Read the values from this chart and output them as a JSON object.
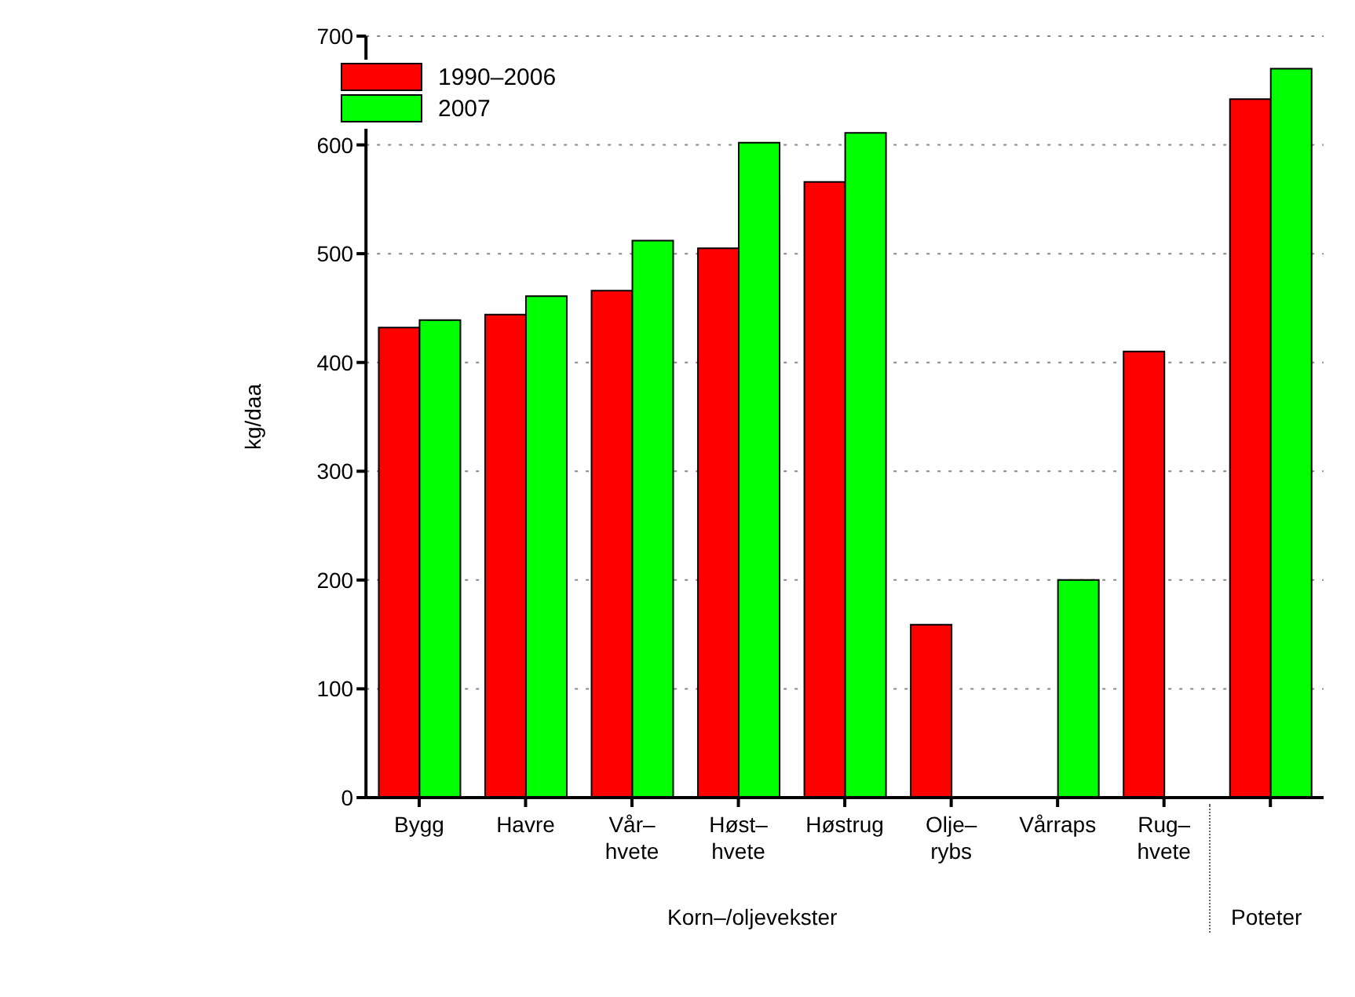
{
  "chart_data": {
    "type": "bar",
    "ylabel": "kg/daa",
    "categories": [
      "Bygg",
      "Havre",
      "Vår–\nhvete",
      "Høst–\nhvete",
      "Høstrug",
      "Olje–\nrybs",
      "Vårraps",
      "Rug–\nhvete",
      null
    ],
    "series": [
      {
        "name": "1990–2006",
        "color": "#ff0000",
        "values": [
          432,
          444,
          466,
          505,
          566,
          159,
          null,
          410,
          642
        ]
      },
      {
        "name": "2007",
        "color": "#00ff00",
        "values": [
          439,
          461,
          512,
          602,
          611,
          null,
          200,
          null,
          670
        ]
      }
    ],
    "ylim": [
      0,
      700
    ],
    "yticks": [
      0,
      100,
      200,
      300,
      400,
      500,
      600,
      700
    ],
    "grid": "y",
    "legend": "top left",
    "annotations": [
      "Korn–/oljevekster",
      "Poteter"
    ]
  }
}
